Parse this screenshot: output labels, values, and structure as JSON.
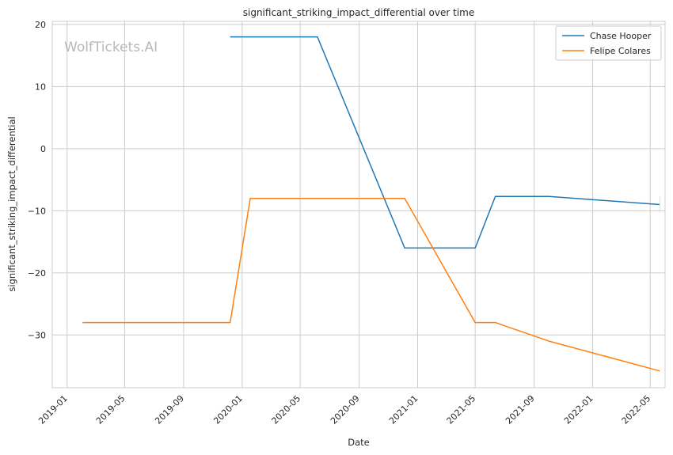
{
  "watermark": "WolfTickets.AI",
  "chart_data": {
    "type": "line",
    "title": "significant_striking_impact_differential over time",
    "xlabel": "Date",
    "ylabel": "significant_striking_impact_differential",
    "x_ticks": [
      "2019-01",
      "2019-05",
      "2019-09",
      "2020-01",
      "2020-05",
      "2020-09",
      "2021-01",
      "2021-05",
      "2021-09",
      "2022-01",
      "2022-05"
    ],
    "y_ticks": [
      20,
      10,
      0,
      -10,
      -20,
      -30
    ],
    "xlim": [
      "2018-12-01",
      "2022-06-01"
    ],
    "ylim": [
      -38.5,
      20.5
    ],
    "grid": true,
    "legend_position": "top-right",
    "series": [
      {
        "name": "Chase Hooper",
        "color": "#1f77b4",
        "points": [
          {
            "x": "2019-12-07",
            "y": 18
          },
          {
            "x": "2020-06-06",
            "y": 18
          },
          {
            "x": "2020-12-05",
            "y": -16
          },
          {
            "x": "2021-05-01",
            "y": -16
          },
          {
            "x": "2021-06-12",
            "y": -7.7
          },
          {
            "x": "2021-10-02",
            "y": -7.7
          },
          {
            "x": "2022-05-21",
            "y": -9
          }
        ]
      },
      {
        "name": "Felipe Colares",
        "color": "#ff7f0e",
        "points": [
          {
            "x": "2019-02-02",
            "y": -28
          },
          {
            "x": "2019-12-07",
            "y": -28
          },
          {
            "x": "2020-01-18",
            "y": -8
          },
          {
            "x": "2020-12-05",
            "y": -8
          },
          {
            "x": "2021-05-01",
            "y": -28
          },
          {
            "x": "2021-06-12",
            "y": -28
          },
          {
            "x": "2021-10-02",
            "y": -31
          },
          {
            "x": "2022-05-21",
            "y": -35.8
          }
        ]
      }
    ]
  }
}
